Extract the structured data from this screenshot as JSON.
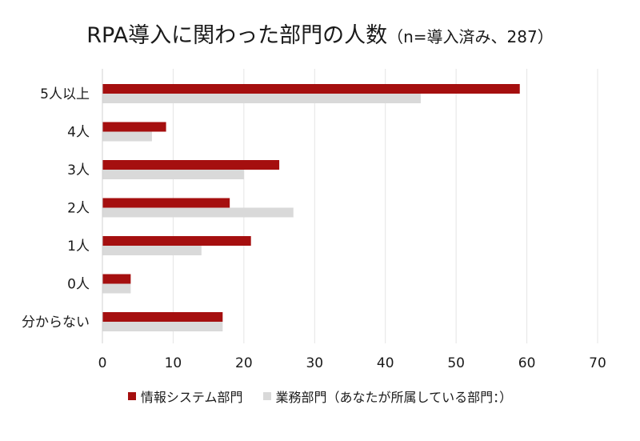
{
  "chart_data": {
    "type": "bar",
    "orientation": "horizontal",
    "title": "RPA導入に関わった部門の人数",
    "subtitle": "（n=導入済み、287）",
    "categories": [
      "5人以上",
      "4人",
      "3人",
      "2人",
      "1人",
      "0人",
      "分からない"
    ],
    "series": [
      {
        "name": "情報システム部門",
        "color": "#a50f0f",
        "values": [
          59,
          9,
          25,
          18,
          21,
          4,
          17
        ]
      },
      {
        "name": "業務部門（あなたが所属している部門：）",
        "color": "#d9d9d9",
        "values": [
          45,
          7,
          20,
          27,
          14,
          4,
          17
        ]
      }
    ],
    "xlim": [
      0,
      70
    ],
    "xticks": [
      0,
      10,
      20,
      30,
      40,
      50,
      60,
      70
    ],
    "grid": true,
    "legend_position": "bottom"
  }
}
